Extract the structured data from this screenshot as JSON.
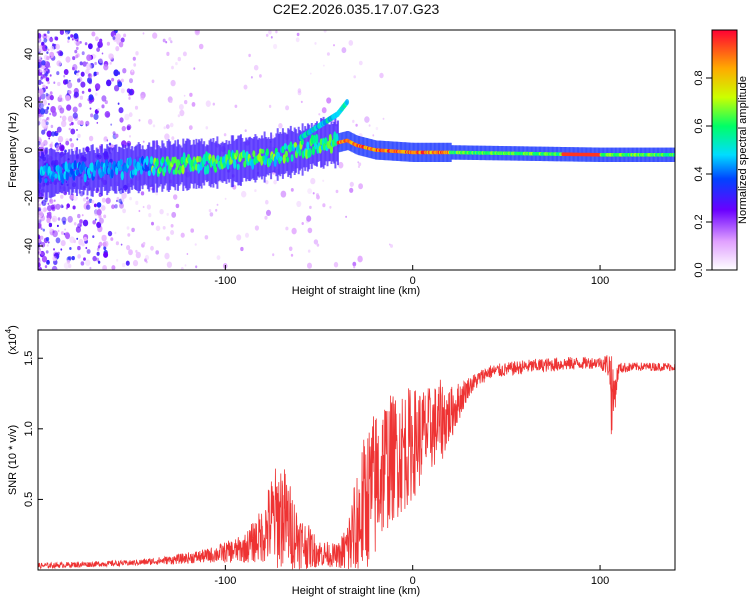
{
  "title": "C2E2.2026.035.17.07.G23",
  "chart_data": [
    {
      "type": "heatmap",
      "name": "spectrogram",
      "xlabel": "Height of straight line (km)",
      "ylabel": "Frequency (Hz)",
      "xlim": [
        -200,
        140
      ],
      "ylim": [
        -50,
        50
      ],
      "x_ticks": [
        -100,
        0,
        100
      ],
      "y_ticks": [
        -40,
        -20,
        0,
        20,
        40
      ],
      "ridge": {
        "x": [
          -200,
          -180,
          -160,
          -140,
          -120,
          -100,
          -80,
          -60,
          -50,
          -40,
          -35,
          -30,
          -20,
          0,
          20,
          60,
          100,
          140
        ],
        "freq": [
          -10,
          -9,
          -8,
          -7,
          -6,
          -5,
          -3,
          0,
          3,
          3,
          4,
          2,
          0,
          -1,
          -1,
          -1.5,
          -2,
          -2
        ]
      },
      "branch": {
        "x": [
          -60,
          -50,
          -40,
          -35
        ],
        "freq": [
          5,
          10,
          15,
          20
        ]
      },
      "colorbar": {
        "label": "Normalized spectral amplitude",
        "ticks": [
          "0.0",
          "0.2",
          "0.4",
          "0.6",
          "0.8"
        ],
        "range": [
          0,
          1
        ]
      }
    },
    {
      "type": "line",
      "name": "snr",
      "xlabel": "Height of straight line (km)",
      "ylabel": "SNR (10 * v/v)",
      "yscale_label": "(x10",
      "yscale_exp": "4",
      "xlim": [
        -200,
        140
      ],
      "ylim": [
        0,
        1.7
      ],
      "x_ticks": [
        -100,
        0,
        100
      ],
      "y_ticks": [
        "0.5",
        "1.0",
        "1.5"
      ],
      "color": "#ee3333",
      "envelope": {
        "x": [
          -200,
          -150,
          -130,
          -110,
          -90,
          -80,
          -75,
          -70,
          -65,
          -60,
          -50,
          -40,
          -35,
          -30,
          -25,
          -20,
          -15,
          -10,
          -5,
          0,
          5,
          10,
          15,
          20,
          30,
          40,
          60,
          80,
          100,
          105,
          106,
          107,
          110,
          120,
          140
        ],
        "base": [
          0.03,
          0.05,
          0.07,
          0.1,
          0.15,
          0.25,
          0.35,
          0.4,
          0.3,
          0.2,
          0.12,
          0.1,
          0.15,
          0.3,
          0.5,
          0.6,
          0.75,
          0.8,
          0.85,
          0.9,
          0.95,
          1.0,
          1.05,
          1.1,
          1.3,
          1.4,
          1.44,
          1.46,
          1.47,
          1.45,
          1.3,
          1.2,
          1.43,
          1.44,
          1.44
        ],
        "noise": [
          0.02,
          0.02,
          0.03,
          0.05,
          0.1,
          0.2,
          0.35,
          0.4,
          0.3,
          0.2,
          0.1,
          0.08,
          0.2,
          0.45,
          0.5,
          0.55,
          0.5,
          0.45,
          0.45,
          0.4,
          0.35,
          0.3,
          0.3,
          0.2,
          0.07,
          0.05,
          0.05,
          0.05,
          0.04,
          0.1,
          0.35,
          0.2,
          0.04,
          0.03,
          0.03
        ]
      }
    }
  ]
}
